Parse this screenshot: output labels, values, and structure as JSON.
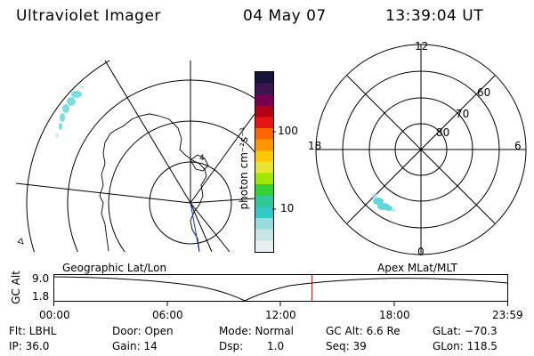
{
  "header": {
    "title": "Ultraviolet Imager",
    "date": "04 May 07",
    "time": "13:39:04 UT"
  },
  "colorbar": {
    "unit_label": "photon cm⁻²s⁻¹",
    "ticks": [
      "100",
      "10"
    ],
    "colors": [
      "#14143c",
      "#3c1450",
      "#780050",
      "#b40014",
      "#e61414",
      "#ff6400",
      "#ff9600",
      "#ffc800",
      "#e6e632",
      "#a0e600",
      "#32d232",
      "#32c896",
      "#32c8c8",
      "#96dcdc",
      "#c8e6e6",
      "#e6f0f0"
    ]
  },
  "left_map": {
    "title": "Geographic Lat/Lon",
    "marker": "4"
  },
  "right_map": {
    "title": "Apex MLat/MLT",
    "mlt_labels": {
      "top": "12",
      "left": "18",
      "right": "6",
      "bottom": "0"
    },
    "lat_labels": [
      "60",
      "70",
      "80"
    ]
  },
  "timeline": {
    "axis_label": "GC Alt",
    "y_ticks": [
      "9.0",
      "1.8"
    ],
    "x_ticks": [
      "00:00",
      "06:00",
      "12:00",
      "18:00",
      "23:59"
    ],
    "current_time_fraction": 0.5688,
    "marker_color": "#e60000"
  },
  "info": {
    "row1": {
      "filter": "Flt: LBHL",
      "door": "Door: Open",
      "mode": "Mode: Normal",
      "gc_alt": "GC Alt: 6.6 Re",
      "glat": "GLat: −70.3"
    },
    "row2": {
      "ip": "IP: 36.0",
      "gain": "Gain: 14",
      "dsp_label": "Dsp:",
      "dsp_value": "1.0",
      "seq": "Seq: 39",
      "glon": "GLon: 118.5"
    }
  }
}
